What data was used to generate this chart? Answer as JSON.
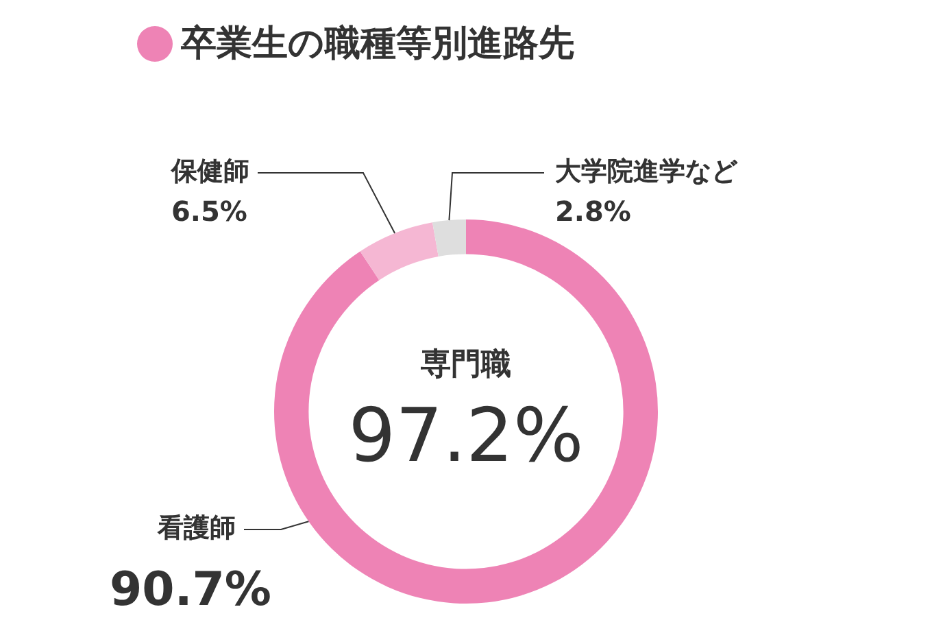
{
  "chart_data": {
    "type": "donut",
    "title": "卒業生の職種等別進路先",
    "categories": [
      "看護師",
      "保健師",
      "大学院進学など"
    ],
    "values": [
      90.7,
      6.5,
      2.8
    ],
    "colors": [
      "#ee83b5",
      "#f5b7d3",
      "#dedede"
    ],
    "value_labels": [
      "90.7%",
      "6.5%",
      "2.8%"
    ],
    "annotations": [
      "専門職",
      "97.2%"
    ],
    "legend": false
  }
}
